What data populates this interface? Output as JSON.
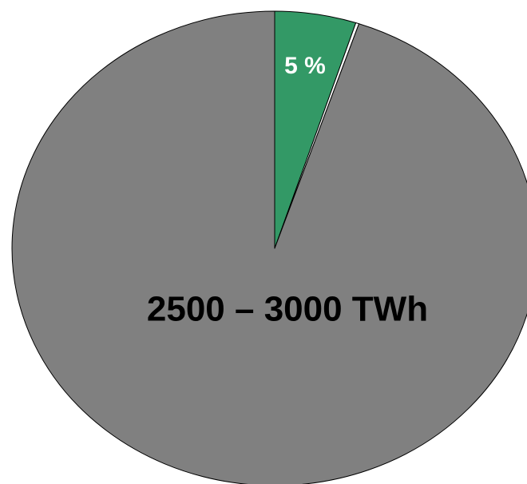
{
  "chart_data": {
    "type": "pie",
    "slices": [
      {
        "value": 5,
        "label": "5 %",
        "color": "#339966"
      },
      {
        "value": 0.2,
        "label": "",
        "color": "#ffffff"
      },
      {
        "value": 94.8,
        "label": "2500 – 3000 TWh",
        "color": "#808080"
      }
    ],
    "start_angle_deg": 0,
    "direction": "clockwise",
    "label_color_small": "#ffffff",
    "label_color_large": "#000000",
    "stroke_color": "#000000"
  }
}
